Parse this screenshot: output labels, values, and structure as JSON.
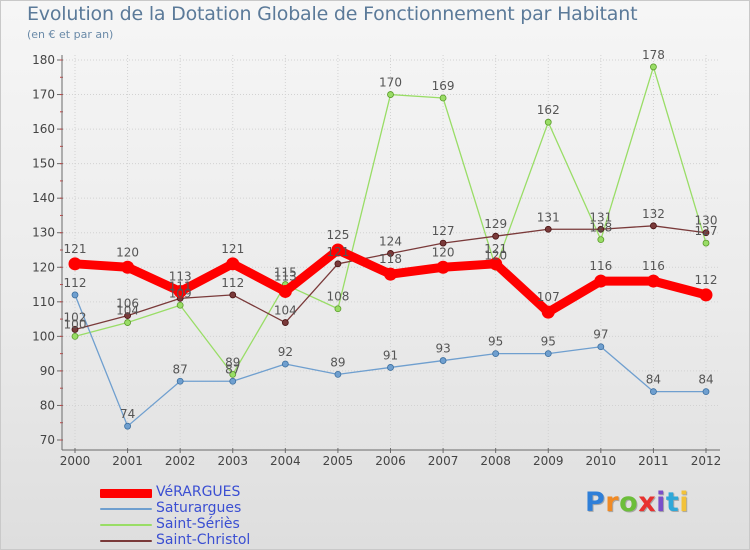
{
  "title": "Evolution de la Dotation Globale de Fonctionnement par Habitant",
  "subtitle": "(en € et par an)",
  "logo": {
    "letters": [
      "P",
      "r",
      "o",
      "x",
      "i",
      "t",
      "i"
    ],
    "colors": [
      "#2f7fd8",
      "#f08a24",
      "#6cbe3a",
      "#e8322f",
      "#7a4ec9",
      "#2fa8d8",
      "#f2c23a"
    ]
  },
  "colors": {
    "VéRARGUES": "#ff0000",
    "Saturargues": "#6f9fcf",
    "Saint-Sériès": "#99dd66",
    "Saint-Christol": "#7a3a3a",
    "axis": "#6a6a6a",
    "grid": "#d2d2d2",
    "label": "#555555"
  },
  "chart_data": {
    "type": "line",
    "title": "Evolution de la Dotation Globale de Fonctionnement par Habitant",
    "ylabel": "(en € et par an)",
    "xlabel": "",
    "x": [
      "2000",
      "2001",
      "2002",
      "2003",
      "2004",
      "2005",
      "2006",
      "2007",
      "2008",
      "2009",
      "2010",
      "2011",
      "2012"
    ],
    "ylim": [
      70,
      180
    ],
    "yticks": [
      "70",
      "80",
      "90",
      "100",
      "110",
      "120",
      "130",
      "140",
      "150",
      "160",
      "170",
      "180"
    ],
    "series": [
      {
        "name": "VéRARGUES",
        "values": [
          121,
          120,
          113,
          121,
          113,
          125,
          118,
          120,
          121,
          107,
          116,
          116,
          112
        ],
        "labels": [
          "121",
          "120",
          "113",
          "121",
          "113",
          "125",
          "118",
          "120",
          "121",
          "107",
          "116",
          "116",
          "112"
        ]
      },
      {
        "name": "Saturargues",
        "values": [
          112,
          74,
          87,
          87,
          92,
          89,
          91,
          93,
          95,
          95,
          97,
          84,
          84
        ],
        "labels": [
          "112",
          "74",
          "87",
          "87",
          "92",
          "89",
          "91",
          "93",
          "95",
          "95",
          "97",
          "84",
          "84"
        ]
      },
      {
        "name": "Saint-Sériès",
        "values": [
          100,
          104,
          109,
          89,
          115,
          108,
          170,
          169,
          120,
          162,
          128,
          178,
          127
        ],
        "labels": [
          "100",
          "104",
          "109",
          "89",
          "115",
          "108",
          "170",
          "169",
          "120",
          "162",
          "128",
          "178",
          "127"
        ]
      },
      {
        "name": "Saint-Christol",
        "values": [
          102,
          106,
          111,
          112,
          104,
          121,
          124,
          127,
          129,
          131,
          131,
          132,
          130
        ],
        "labels": [
          "102",
          "106",
          "111",
          "112",
          "104",
          "121",
          "124",
          "127",
          "129",
          "131",
          "131",
          "132",
          "130"
        ]
      }
    ],
    "legend": [
      "VéRARGUES",
      "Saturargues",
      "Saint-Sériès",
      "Saint-Christol"
    ],
    "legend_position": "bottom-left",
    "grid": true
  }
}
